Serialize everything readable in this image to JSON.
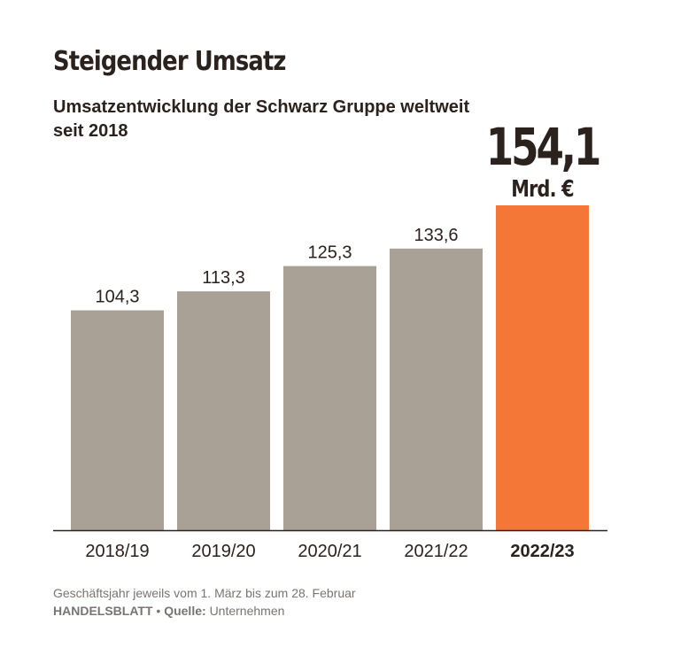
{
  "header": {
    "title": "Steigender Umsatz",
    "subtitle": "Umsatzentwicklung der Schwarz Gruppe weltweit seit 2018"
  },
  "highlight": {
    "value_label": "154,1",
    "unit_label": "Mrd. €"
  },
  "footer": {
    "note": "Geschäftsjahr jeweils vom 1. März bis zum 28. Februar",
    "publisher": "HANDELSBLATT",
    "separator": "•",
    "source_label": "Quelle:",
    "source": "Unternehmen"
  },
  "colors": {
    "bar": "#aaa196",
    "highlight_bar": "#f47738",
    "text": "#2b211d",
    "muted": "#7a7470"
  },
  "chart_data": {
    "type": "bar",
    "categories": [
      "2018/19",
      "2019/20",
      "2020/21",
      "2021/22",
      "2022/23"
    ],
    "values": [
      104.3,
      113.3,
      125.3,
      133.6,
      154.1
    ],
    "value_labels": [
      "104,3",
      "113,3",
      "125,3",
      "133,6",
      "154,1"
    ],
    "highlight_index": 4,
    "unit": "Mrd. €",
    "ylim": [
      0,
      154.1
    ],
    "grid": false
  }
}
